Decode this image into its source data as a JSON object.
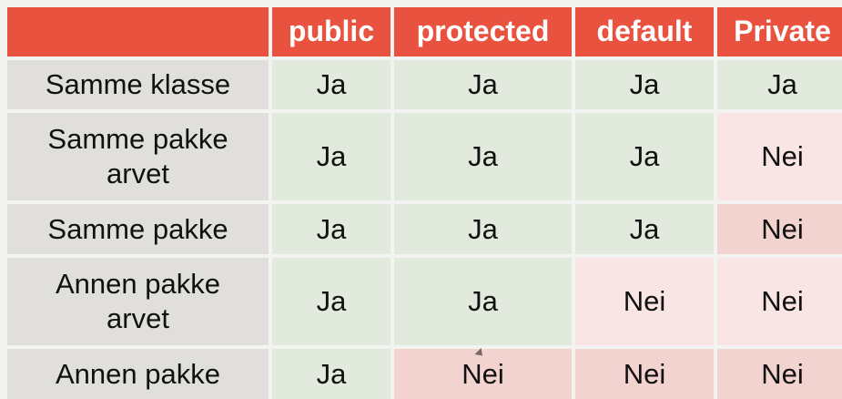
{
  "header": {
    "corner": "",
    "columns": [
      "public",
      "protected",
      "default",
      "Private"
    ]
  },
  "rows": [
    {
      "label": "Samme klasse",
      "values": [
        "Ja",
        "Ja",
        "Ja",
        "Ja"
      ]
    },
    {
      "label": "Samme pakke\narvet",
      "values": [
        "Ja",
        "Ja",
        "Ja",
        "Nei"
      ]
    },
    {
      "label": "Samme pakke",
      "values": [
        "Ja",
        "Ja",
        "Ja",
        "Nei"
      ]
    },
    {
      "label": "Annen pakke\narvet",
      "values": [
        "Ja",
        "Ja",
        "Nei",
        "Nei"
      ]
    },
    {
      "label": "Annen pakke",
      "values": [
        "Ja",
        "Nei",
        "Nei",
        "Nei"
      ]
    }
  ],
  "colors": {
    "header_bg": "#e9523f",
    "row_label_bg": "#e1dfdb",
    "yes_bg": "#e2e9dd",
    "no_bg_light": "#f9e6e4",
    "no_bg_mid": "#f3d3d0"
  }
}
